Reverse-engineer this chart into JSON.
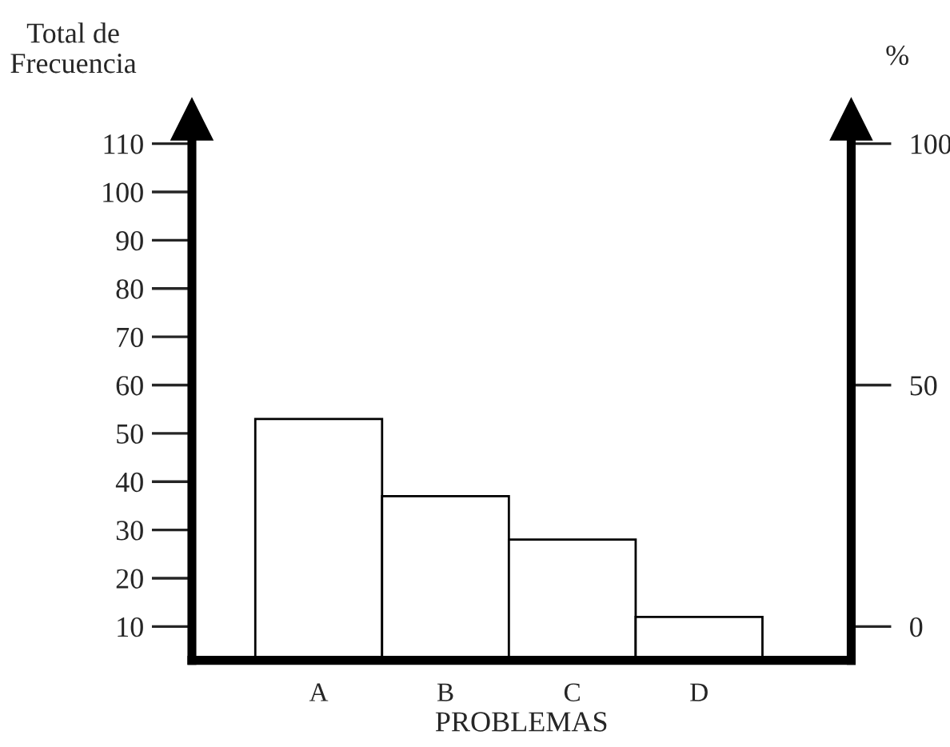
{
  "chart_data": {
    "type": "bar",
    "categories": [
      "A",
      "B",
      "C",
      "D"
    ],
    "values": [
      53,
      37,
      28,
      12
    ],
    "color": "#ffffff",
    "xlabel": "PROBLEMAS",
    "ylabel": "Total de\nFrecuencia",
    "y2label": "%",
    "ylim": [
      3,
      115
    ],
    "yticks": [
      10,
      20,
      30,
      40,
      50,
      60,
      70,
      80,
      90,
      100,
      110
    ],
    "y2lim": [
      -7,
      105
    ],
    "y2ticks": [
      0,
      50,
      100
    ],
    "grid": false,
    "legend": false
  }
}
